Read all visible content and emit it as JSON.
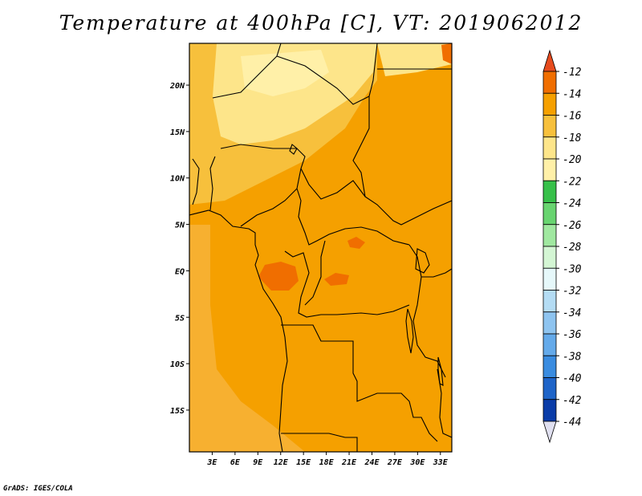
{
  "title": "Temperature at 400hPa [C], VT: 2019062012",
  "credit": "GrADS: IGES/COLA",
  "colors": {
    "base_field": "#f5a000",
    "warm_field": "#f58c10",
    "warmer_patch": "#f06e00",
    "cool_field": "#f7c03c",
    "coolest_field": "#fff0a8",
    "boundary": "#000000"
  },
  "map": {
    "lon_range": [
      0,
      34.5
    ],
    "lat_range": [
      -19.5,
      24.5
    ],
    "x_ticks": [
      "3E",
      "6E",
      "9E",
      "12E",
      "15E",
      "18E",
      "21E",
      "24E",
      "27E",
      "30E",
      "33E"
    ],
    "y_ticks": [
      "20N",
      "15N",
      "10N",
      "5N",
      "EQ",
      "5S",
      "10S",
      "15S"
    ]
  },
  "colorbar": {
    "labels": [
      "-12",
      "-14",
      "-16",
      "-18",
      "-20",
      "-22",
      "-24",
      "-26",
      "-28",
      "-30",
      "-32",
      "-34",
      "-36",
      "-38",
      "-40",
      "-42",
      "-44"
    ],
    "colors": [
      "#e64b1e",
      "#f06e00",
      "#f5a000",
      "#f7c03c",
      "#fde58a",
      "#fff0a8",
      "#37c04a",
      "#68d470",
      "#a0e8a0",
      "#d4f6d4",
      "#e6f8fa",
      "#b4dcf4",
      "#8ec4f0",
      "#64aaea",
      "#3a8ce0",
      "#1e64c8",
      "#0a3ca8",
      "#101070",
      "#e0e0f0"
    ]
  }
}
